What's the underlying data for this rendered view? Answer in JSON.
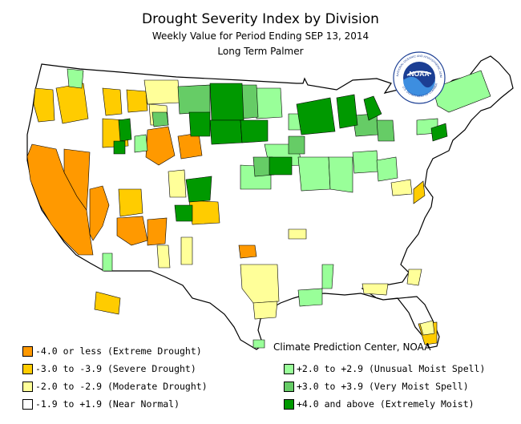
{
  "title": "Drought Severity Index by Division",
  "subtitle": "Weekly Value for Period Ending SEP 13, 2014",
  "index_name": "Long Term Palmer",
  "credit": "Climate Prediction Center, NOAA",
  "logo": {
    "center_text": "NOAA",
    "ring_text": "NATIONAL OCEANIC AND ATMOSPHERIC ADMINISTRATION",
    "bottom_text": "U.S. DEPARTMENT OF COMMERCE"
  },
  "legend": [
    {
      "label": "-4.0 or less (Extreme Drought)",
      "color": "#ff9900"
    },
    {
      "label": "-3.0 to -3.9 (Severe Drought)",
      "color": "#ffcc00"
    },
    {
      "label": "-2.0 to -2.9 (Moderate Drought)",
      "color": "#ffff99"
    },
    {
      "label": "-1.9 to +1.9 (Near Normal)",
      "color": "#ffffff"
    },
    {
      "label": "+2.0 to +2.9 (Unusual Moist Spell)",
      "color": "#99ff99"
    },
    {
      "label": "+3.0 to +3.9 (Very Moist Spell)",
      "color": "#66cc66"
    },
    {
      "label": "+4.0 and above (Extremely Moist)",
      "color": "#009900"
    }
  ]
}
